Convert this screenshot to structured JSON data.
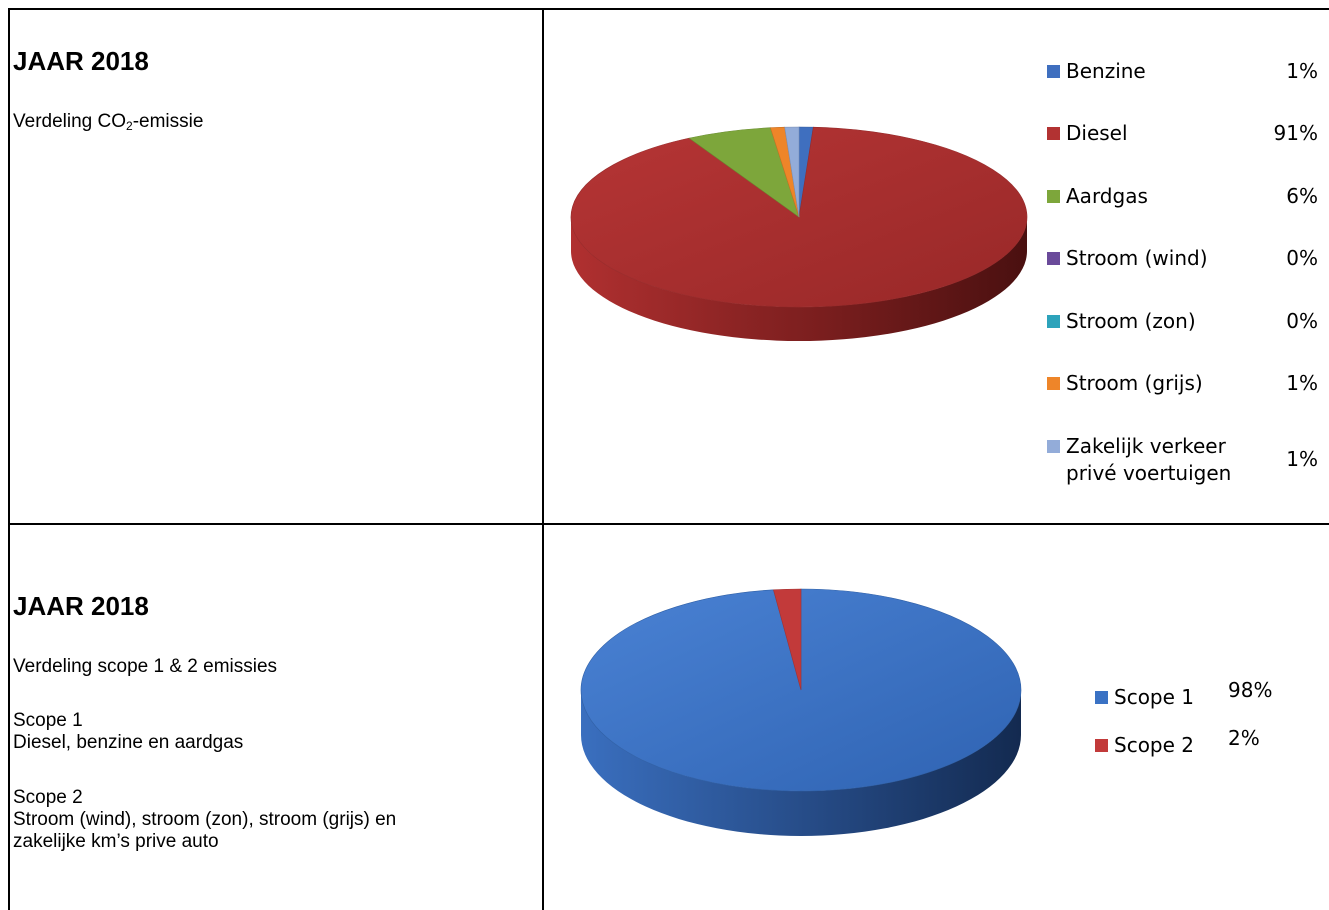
{
  "section1": {
    "title": "JAAR 2018",
    "subtitle_pre": "Verdeling CO",
    "subtitle_sub": "2",
    "subtitle_post": "-emissie"
  },
  "section2": {
    "title": "JAAR 2018",
    "subtitle": "Verdeling scope 1 & 2 emissies",
    "scope1_heading": "Scope 1",
    "scope1_desc": "Diesel, benzine en aardgas",
    "scope2_heading": "Scope 2",
    "scope2_desc_line1": "Stroom (wind), stroom (zon), stroom (grijs) en",
    "scope2_desc_line2": "zakelijke km’s prive auto"
  },
  "chart_data": [
    {
      "type": "pie",
      "title": "",
      "categories": [
        "Benzine",
        "Diesel",
        "Aardgas",
        "Stroom (wind)",
        "Stroom (zon)",
        "Stroom (grijs)",
        "Zakelijk verkeer privé voertuigen"
      ],
      "values": [
        1,
        91,
        6,
        0,
        0,
        1,
        1
      ],
      "value_labels": [
        "1%",
        "91%",
        "6%",
        "0%",
        "0%",
        "1%",
        "1%"
      ],
      "legend_lines": [
        [
          "Benzine"
        ],
        [
          "Diesel"
        ],
        [
          "Aardgas"
        ],
        [
          "Stroom (wind)"
        ],
        [
          "Stroom (zon)"
        ],
        [
          "Stroom (grijs)"
        ],
        [
          "Zakelijk verkeer",
          "privé voertuigen"
        ]
      ],
      "colors": [
        "#3f6fbf",
        "#b23232",
        "#7da63b",
        "#6a4a9a",
        "#2da3bb",
        "#ee8529",
        "#93acd9"
      ],
      "legend": "right",
      "style": "3d"
    },
    {
      "type": "pie",
      "title": "",
      "categories": [
        "Scope 1",
        "Scope 2"
      ],
      "values": [
        98,
        2
      ],
      "value_labels": [
        "98%",
        "2%"
      ],
      "colors": [
        "#3a72c4",
        "#c23a3a"
      ],
      "legend": "right",
      "style": "3d"
    }
  ]
}
